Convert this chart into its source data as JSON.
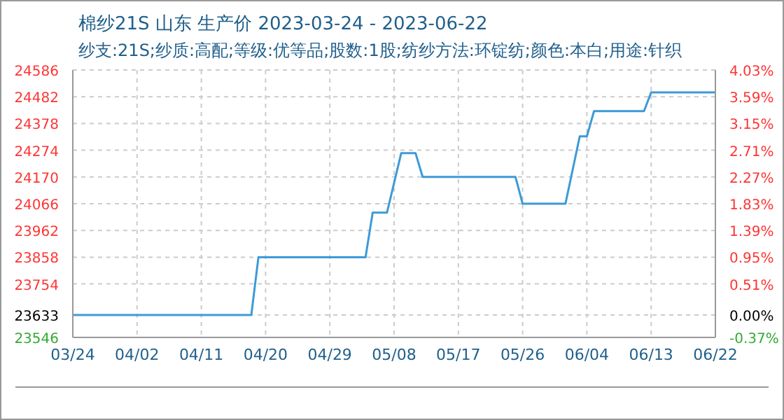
{
  "chart_data": {
    "type": "line",
    "title": "棉纱21S 山东 生产价 2023-03-24 - 2023-06-22",
    "subtitle": "纱支:21S;纱质:高配;等级:优等品;股数:1股;纺纱方法:环锭纺;颜色:本白;用途:针织",
    "x": [
      "2023-03-24",
      "2023-04-18",
      "2023-04-19",
      "2023-05-04",
      "2023-05-05",
      "2023-05-07",
      "2023-05-09",
      "2023-05-11",
      "2023-05-12",
      "2023-05-25",
      "2023-05-26",
      "2023-06-01",
      "2023-06-03",
      "2023-06-04",
      "2023-06-05",
      "2023-06-12",
      "2023-06-13",
      "2023-06-22"
    ],
    "series": [
      {
        "color": "#3d9ad8",
        "values": [
          23633,
          23633,
          23858,
          23858,
          24031,
          24031,
          24263,
          24263,
          24170,
          24170,
          24066,
          24066,
          24328,
          24328,
          24426,
          24426,
          24499,
          24499
        ]
      }
    ],
    "xlim": [
      "2023-03-24",
      "2023-06-22"
    ],
    "xticks": [
      {
        "value": "2023-03-24",
        "label": "03/24"
      },
      {
        "value": "2023-04-02",
        "label": "04/02"
      },
      {
        "value": "2023-04-11",
        "label": "04/11"
      },
      {
        "value": "2023-04-20",
        "label": "04/20"
      },
      {
        "value": "2023-04-29",
        "label": "04/29"
      },
      {
        "value": "2023-05-08",
        "label": "05/08"
      },
      {
        "value": "2023-05-17",
        "label": "05/17"
      },
      {
        "value": "2023-05-26",
        "label": "05/26"
      },
      {
        "value": "2023-06-04",
        "label": "06/04"
      },
      {
        "value": "2023-06-13",
        "label": "06/13"
      },
      {
        "value": "2023-06-22",
        "label": "06/22"
      }
    ],
    "ylim": [
      23546,
      24586
    ],
    "yticks": [
      23546,
      23633,
      23754,
      23858,
      23962,
      24066,
      24170,
      24274,
      24378,
      24482,
      24586
    ],
    "y2lim": [
      -0.37,
      4.03
    ],
    "y2ticks": [
      {
        "value": -0.37,
        "label": "-0.37%"
      },
      {
        "value": 0,
        "label": "0.00%"
      },
      {
        "value": 0.51,
        "label": "0.51%"
      },
      {
        "value": 0.95,
        "label": "0.95%"
      },
      {
        "value": 1.39,
        "label": "1.39%"
      },
      {
        "value": 1.83,
        "label": "1.83%"
      },
      {
        "value": 2.27,
        "label": "2.27%"
      },
      {
        "value": 2.71,
        "label": "2.71%"
      },
      {
        "value": 3.15,
        "label": "3.15%"
      },
      {
        "value": 3.59,
        "label": "3.59%"
      },
      {
        "value": 4.03,
        "label": "4.03%"
      }
    ],
    "grid": true,
    "marker": "none",
    "line_style": "solid"
  }
}
